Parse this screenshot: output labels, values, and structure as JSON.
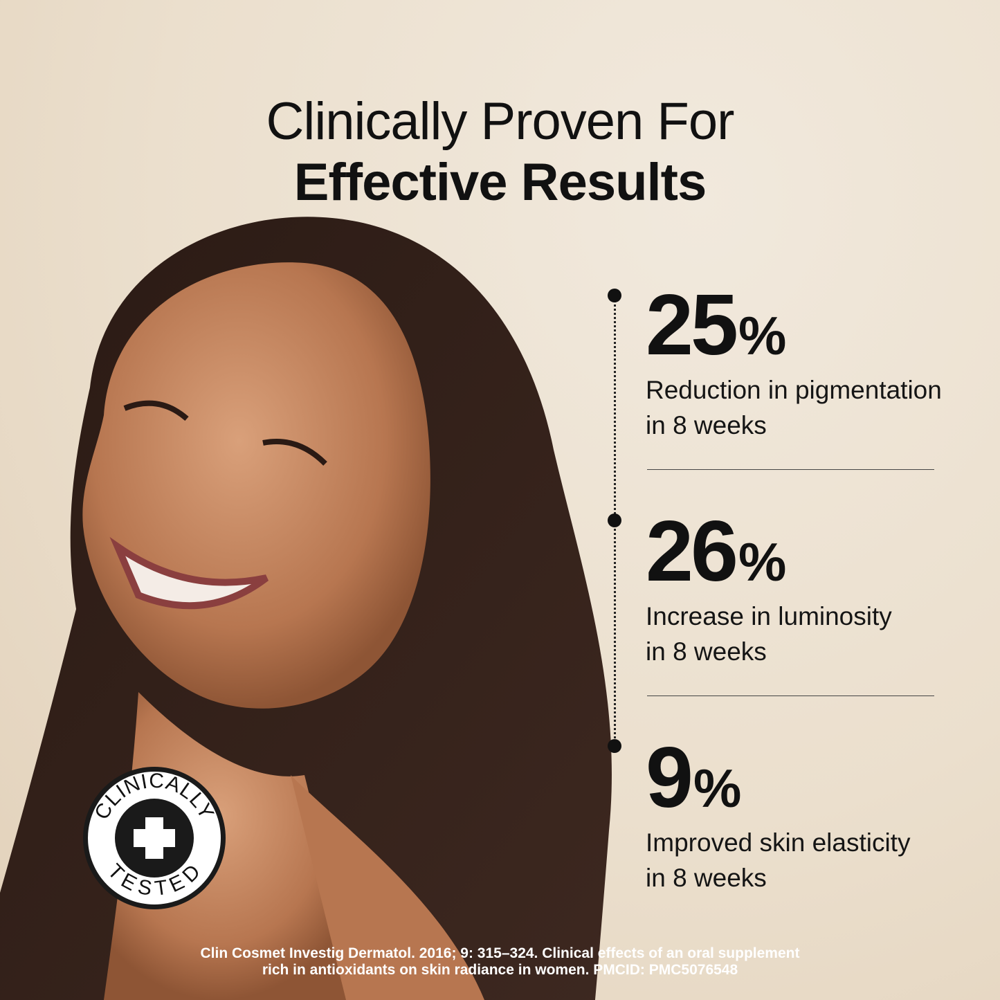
{
  "heading": {
    "line1": "Clinically Proven For",
    "line2": "Effective Results"
  },
  "stats": [
    {
      "value": "25",
      "unit": "%",
      "description": "Reduction in pigmentation\nin 8 weeks"
    },
    {
      "value": "26",
      "unit": "%",
      "description": "Increase in luminosity\nin 8 weeks"
    },
    {
      "value": "9",
      "unit": "%",
      "description": "Improved skin elasticity\nin 8 weeks"
    }
  ],
  "badge": {
    "top_text": "CLINICALLY",
    "bottom_text": "TESTED",
    "icon": "plus-cross-icon"
  },
  "footer": {
    "line1": "Clin Cosmet Investig Dermatol. 2016; 9: 315–324. Clinical effects of an oral supplement",
    "line2": "rich in antioxidants on skin radiance in women. PMCID: PMC5076548"
  },
  "colors": {
    "background": "#ece1d1",
    "text": "#111111",
    "footer_text": "#ffffff"
  }
}
